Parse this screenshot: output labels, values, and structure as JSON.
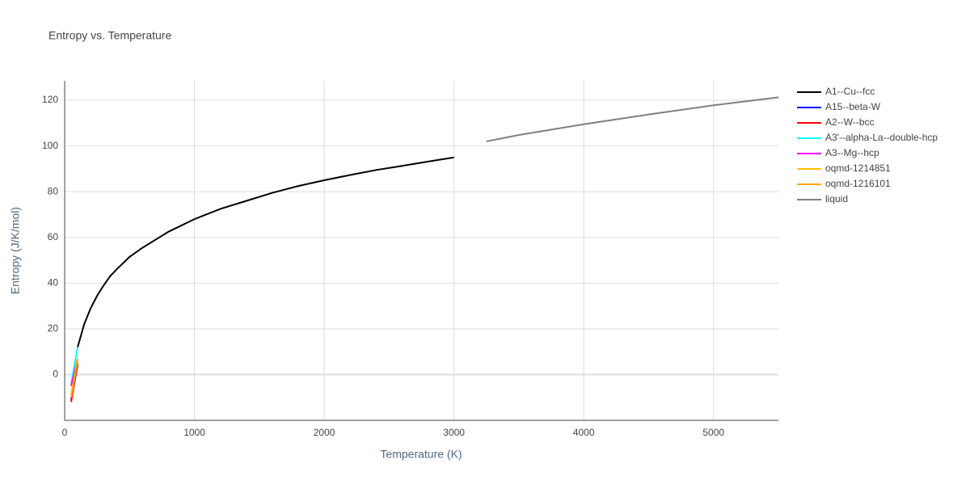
{
  "chart_data": {
    "type": "line",
    "title": "Entropy vs. Temperature",
    "x_label": "Temperature (K)",
    "y_label": "Entropy (J/K/mol)",
    "xlim": [
      0,
      5500
    ],
    "ylim": [
      -20,
      128.5
    ],
    "xticks": [
      0,
      1000,
      2000,
      3000,
      4000,
      5000
    ],
    "yticks": [
      0,
      20,
      40,
      60,
      80,
      100,
      120
    ],
    "grid": true,
    "series": [
      {
        "name": "A1--Cu--fcc",
        "color": "#000000",
        "x": [
          100,
          150,
          200,
          250,
          300,
          350,
          400,
          500,
          600,
          700,
          800,
          1000,
          1200,
          1400,
          1600,
          1800,
          2000,
          2200,
          2400,
          2600,
          2800,
          3000
        ],
        "values": [
          12,
          22,
          29,
          34.5,
          39,
          43,
          46,
          51.5,
          55.5,
          59,
          62.5,
          68,
          72.5,
          76,
          79.5,
          82.5,
          85,
          87.3,
          89.5,
          91.3,
          93.2,
          95
        ]
      },
      {
        "name": "A15--beta-W",
        "color": "#0000ff",
        "x": [
          50,
          100
        ],
        "values": [
          -11,
          4
        ]
      },
      {
        "name": "A2--W--bcc",
        "color": "#ff0000",
        "x": [
          50,
          100
        ],
        "values": [
          -12,
          5
        ]
      },
      {
        "name": "A3'--alpha-La--double-hcp",
        "color": "#00ffff",
        "x": [
          50,
          100
        ],
        "values": [
          -4,
          12
        ]
      },
      {
        "name": "A3--Mg--hcp",
        "color": "#ff00ff",
        "x": [
          50,
          100
        ],
        "values": [
          -5,
          7
        ]
      },
      {
        "name": "oqmd-1214851",
        "color": "#ffbf00",
        "x": [
          50,
          100
        ],
        "values": [
          -9,
          7
        ]
      },
      {
        "name": "oqmd-1216101",
        "color": "#ffa500",
        "x": [
          50,
          100
        ],
        "values": [
          -10,
          6
        ]
      },
      {
        "name": "liquid",
        "color": "#808080",
        "x": [
          3250,
          3500,
          4000,
          4500,
          5000,
          5500
        ],
        "values": [
          102,
          104.8,
          109.5,
          113.8,
          117.8,
          121.3
        ]
      }
    ]
  }
}
